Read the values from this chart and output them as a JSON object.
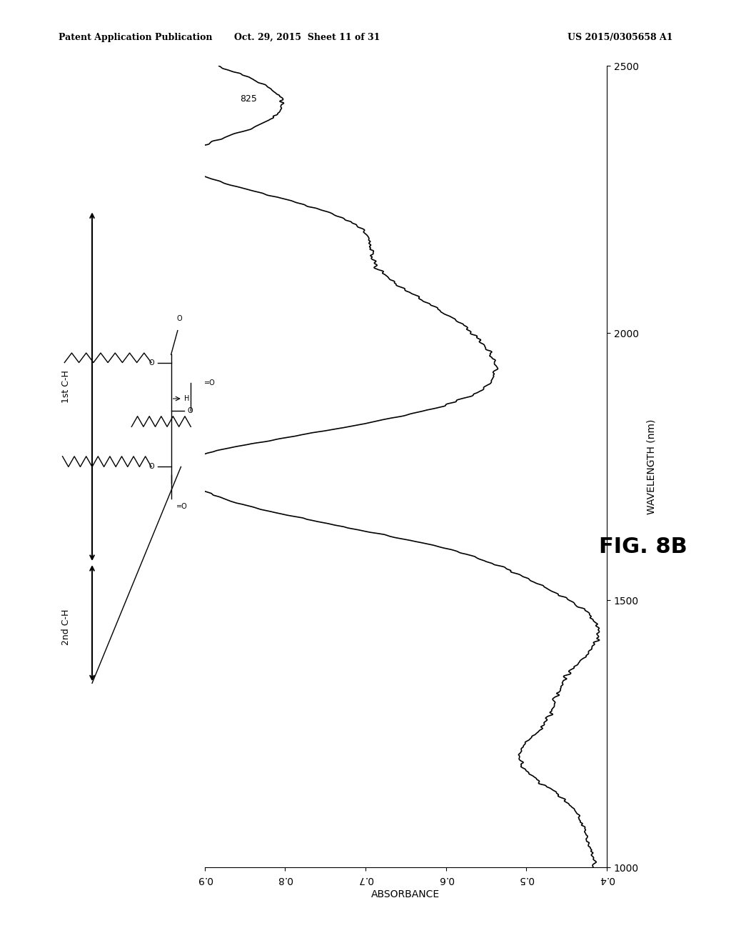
{
  "header_left": "Patent Application Publication",
  "header_center": "Oct. 29, 2015  Sheet 11 of 31",
  "header_right": "US 2015/0305658 A1",
  "fig_label": "FIG. 8B",
  "xlabel": "ABSORBANCE",
  "ylabel": "WAVELENGTH (nm)",
  "xlim": [
    0.4,
    0.9
  ],
  "ylim": [
    1000,
    2500
  ],
  "yticks": [
    1000,
    1500,
    2000,
    2500
  ],
  "xticks": [
    0.4,
    0.5,
    0.6,
    0.7,
    0.8,
    0.9
  ],
  "annotation_825": "825",
  "label_1st": "1st C-H",
  "label_2nd": "2nd C-H",
  "background_color": "#ffffff",
  "line_color": "#000000",
  "title_fontsize": 12,
  "axis_fontsize": 10,
  "tick_fontsize": 9
}
